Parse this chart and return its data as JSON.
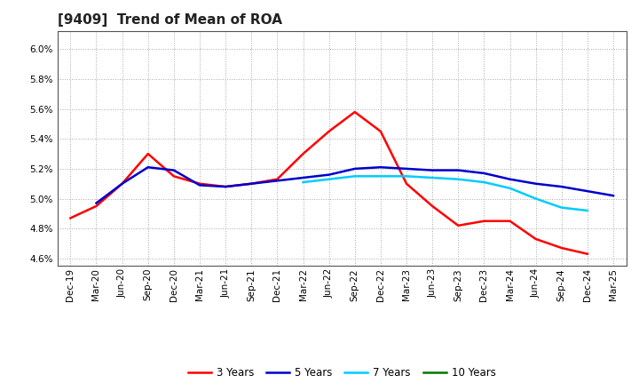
{
  "title": "[9409]  Trend of Mean of ROA",
  "background_color": "#ffffff",
  "plot_bg_color": "#ffffff",
  "grid_color": "#aaaaaa",
  "ylim_low": 0.0455,
  "ylim_high": 0.0612,
  "yticks": [
    0.046,
    0.048,
    0.05,
    0.052,
    0.054,
    0.056,
    0.058,
    0.06
  ],
  "x_labels": [
    "Dec-19",
    "Mar-20",
    "Jun-20",
    "Sep-20",
    "Dec-20",
    "Mar-21",
    "Jun-21",
    "Sep-21",
    "Dec-21",
    "Mar-22",
    "Jun-22",
    "Sep-22",
    "Dec-22",
    "Mar-23",
    "Jun-23",
    "Sep-23",
    "Dec-23",
    "Mar-24",
    "Jun-24",
    "Sep-24",
    "Dec-24",
    "Mar-25"
  ],
  "three_yr": [
    0.0487,
    0.0495,
    0.051,
    0.053,
    0.0515,
    0.051,
    0.0508,
    0.051,
    0.0513,
    0.053,
    0.0545,
    0.0558,
    0.0545,
    0.051,
    0.0495,
    0.0482,
    0.0485,
    0.0485,
    0.0473,
    0.0467,
    0.0463,
    null
  ],
  "five_yr": [
    null,
    0.0497,
    0.051,
    0.0521,
    0.0519,
    0.0509,
    0.0508,
    0.051,
    0.0512,
    0.0514,
    0.0516,
    0.052,
    0.0521,
    0.052,
    0.0519,
    0.0519,
    0.0517,
    0.0513,
    0.051,
    0.0508,
    0.0505,
    0.0502
  ],
  "seven_yr": [
    null,
    null,
    null,
    null,
    null,
    null,
    null,
    null,
    null,
    0.0511,
    0.0513,
    0.0515,
    0.0515,
    0.0515,
    0.0514,
    0.0513,
    0.0511,
    0.0507,
    0.05,
    0.0494,
    0.0492,
    null
  ],
  "ten_yr": [
    null,
    null,
    null,
    null,
    null,
    null,
    null,
    null,
    null,
    null,
    null,
    null,
    null,
    null,
    null,
    null,
    null,
    null,
    null,
    null,
    null,
    null
  ],
  "color_3yr": "#ff0000",
  "color_5yr": "#0000cc",
  "color_7yr": "#00ccff",
  "color_10yr": "#007700",
  "line_width": 1.8,
  "title_fontsize": 11,
  "tick_fontsize": 7.5,
  "legend_fontsize": 8.5
}
